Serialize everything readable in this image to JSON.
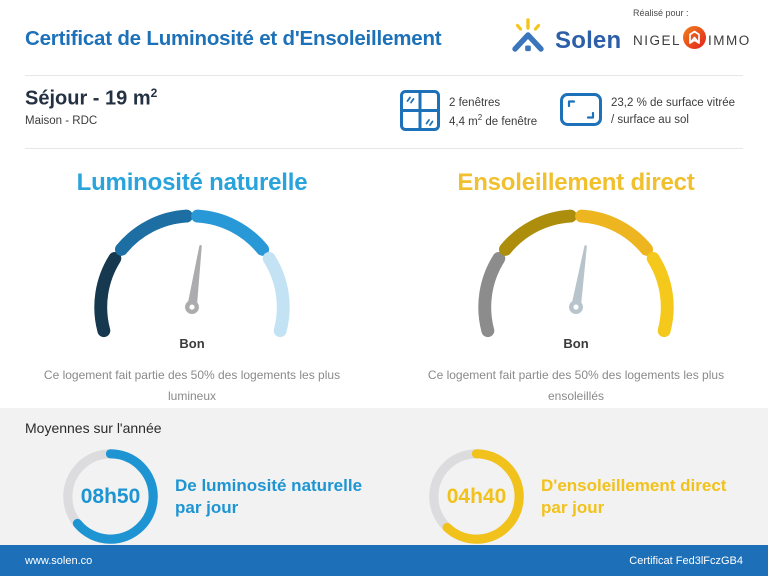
{
  "header": {
    "title": "Certificat de Luminosité et d'Ensoleillement",
    "brand_word": "Solen",
    "realise_label": "Réalisé pour :",
    "client_left": "NIGEL",
    "client_right": "IMMO"
  },
  "room": {
    "title_pre": "Séjour - 19 m",
    "title_sup": "2",
    "subtitle": "Maison - RDC",
    "windows_line1": "2 fenêtres",
    "windows_line2_pre": "4,4 m",
    "windows_line2_sup": "2",
    "windows_line2_post": " de fenêtre",
    "glazing_line1": "23,2 % de surface vitrée",
    "glazing_line2": "/ surface au sol"
  },
  "gauges": [
    {
      "title": "Luminosité naturelle",
      "title_color": "#29a3dc",
      "segments": [
        "#16394f",
        "#1c6ea3",
        "#2899d6",
        "#c3e3f5"
      ],
      "needle_color": "#acacae",
      "needle_angle_deg": 8,
      "rating": "Bon",
      "description": "Ce logement fait partie des 50% des logements les plus lumineux"
    },
    {
      "title": "Ensoleillement direct",
      "title_color": "#f0c02e",
      "segments": [
        "#8c8c8c",
        "#ad8d0c",
        "#edb51f",
        "#f5c91c"
      ],
      "needle_color": "#b8c4cb",
      "needle_angle_deg": 9,
      "rating": "Bon",
      "description": "Ce logement fait partie des 50% des logements les plus ensoleillés"
    }
  ],
  "averages": {
    "title": "Moyennes sur l'année",
    "items": [
      {
        "value": "08h50",
        "label_line1": "De luminosité naturelle",
        "label_line2": "par jour",
        "color": "#1e95d2",
        "track_color": "#dcdcde",
        "fraction": 0.64
      },
      {
        "value": "04h40",
        "label_line1": "D'ensoleillement direct",
        "label_line2": "par jour",
        "color": "#f2c21c",
        "track_color": "#dcdcde",
        "fraction": 0.62
      }
    ]
  },
  "icons": {
    "blue": "#1d71b8",
    "solen_caret": "#3b76bc",
    "solen_ray": "#f5c51b",
    "nigel_orange1": "#f0811c",
    "nigel_orange2": "#e2211c"
  },
  "footer": {
    "left": "www.solen.co",
    "right": "Certificat Fed3lFczGB4"
  }
}
